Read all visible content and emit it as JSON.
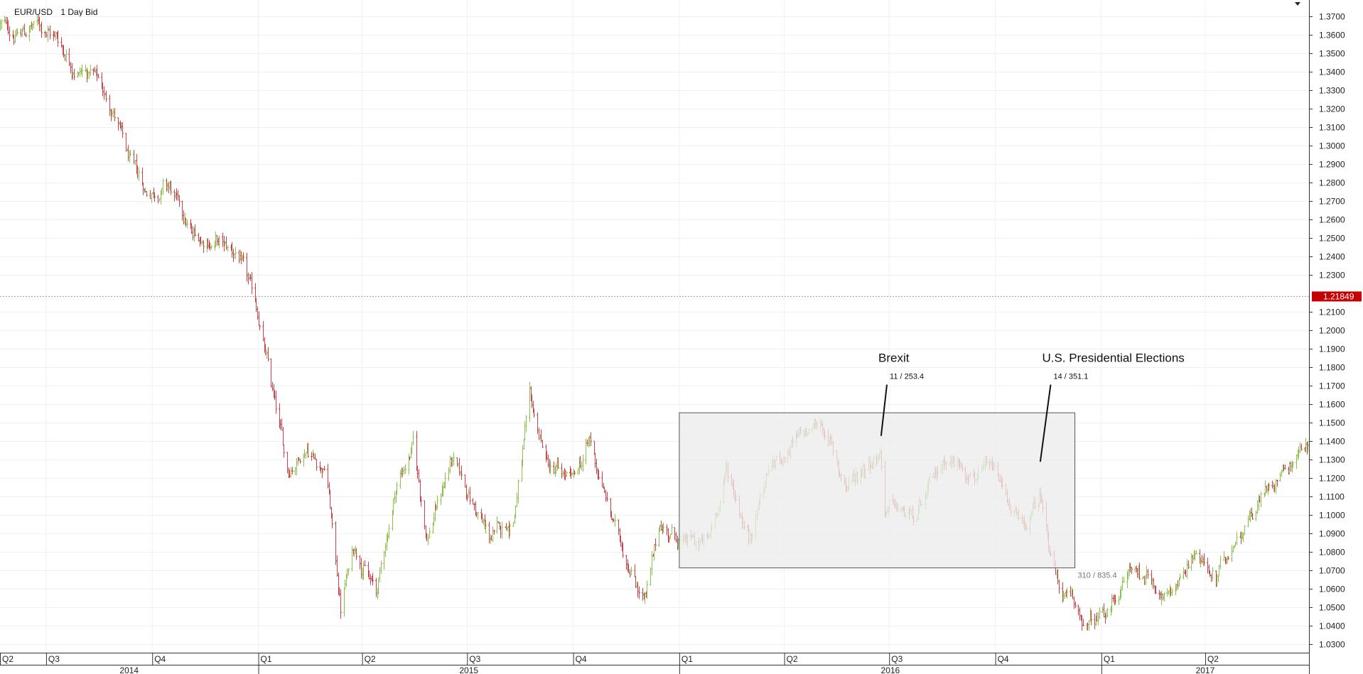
{
  "header": {
    "symbol": "EUR/USD",
    "interval": "1 Day Bid"
  },
  "current_price_label": "1.21849",
  "colors": {
    "up": "#8bc34a",
    "down": "#d0424a",
    "price_tag": "#c40000",
    "range_fill": "#ececec",
    "range_stroke": "#555555",
    "annotation": "#111111"
  },
  "chart_data": {
    "type": "ohlc",
    "title": "EUR/USD 1 Day Bid",
    "y_axis": {
      "position": "right",
      "range": [
        1.025,
        1.3745
      ],
      "ticks": [
        "1.3700",
        "1.3600",
        "1.3500",
        "1.3400",
        "1.3300",
        "1.3200",
        "1.3100",
        "1.3000",
        "1.2900",
        "1.2800",
        "1.2700",
        "1.2600",
        "1.2500",
        "1.2400",
        "1.2300",
        "1.2100",
        "1.2000",
        "1.1900",
        "1.1800",
        "1.1700",
        "1.1600",
        "1.1500",
        "1.1400",
        "1.1300",
        "1.1200",
        "1.1100",
        "1.1000",
        "1.0900",
        "1.0800",
        "1.0700",
        "1.0600",
        "1.0500",
        "1.0400",
        "1.0300"
      ]
    },
    "x_axis": {
      "range": [
        "2014-05-22",
        "2017-06-30"
      ],
      "quarter_labels": [
        {
          "label": "Q2",
          "date": "2014-04-01"
        },
        {
          "label": "Q3",
          "date": "2014-07-01"
        },
        {
          "label": "Q4",
          "date": "2014-10-01"
        },
        {
          "label": "Q1",
          "date": "2015-01-01"
        },
        {
          "label": "Q2",
          "date": "2015-04-01"
        },
        {
          "label": "Q3",
          "date": "2015-07-01"
        },
        {
          "label": "Q4",
          "date": "2015-10-01"
        },
        {
          "label": "Q1",
          "date": "2016-01-01"
        },
        {
          "label": "Q2",
          "date": "2016-04-01"
        },
        {
          "label": "Q3",
          "date": "2016-07-01"
        },
        {
          "label": "Q4",
          "date": "2016-10-01"
        },
        {
          "label": "Q1",
          "date": "2017-01-01"
        },
        {
          "label": "Q2",
          "date": "2017-04-01"
        }
      ],
      "year_labels": [
        {
          "label": "2014",
          "date": "2014-01-01"
        },
        {
          "label": "2015",
          "date": "2015-01-01"
        },
        {
          "label": "2016",
          "date": "2016-01-01"
        },
        {
          "label": "2017",
          "date": "2017-01-01"
        }
      ]
    },
    "series_path": [
      [
        "2014-05-22",
        1.366
      ],
      [
        "2014-06-05",
        1.36
      ],
      [
        "2014-06-25",
        1.366
      ],
      [
        "2014-07-10",
        1.359
      ],
      [
        "2014-07-25",
        1.343
      ],
      [
        "2014-08-12",
        1.338
      ],
      [
        "2014-08-29",
        1.318
      ],
      [
        "2014-09-10",
        1.292
      ],
      [
        "2014-09-25",
        1.275
      ],
      [
        "2014-10-15",
        1.278
      ],
      [
        "2014-11-05",
        1.25
      ],
      [
        "2014-11-25",
        1.248
      ],
      [
        "2014-12-15",
        1.24
      ],
      [
        "2014-12-31",
        1.21
      ],
      [
        "2015-01-15",
        1.16
      ],
      [
        "2015-01-26",
        1.124
      ],
      [
        "2015-02-12",
        1.138
      ],
      [
        "2015-03-01",
        1.123
      ],
      [
        "2015-03-13",
        1.05
      ],
      [
        "2015-03-25",
        1.085
      ],
      [
        "2015-04-13",
        1.057
      ],
      [
        "2015-04-30",
        1.115
      ],
      [
        "2015-05-15",
        1.138
      ],
      [
        "2015-05-27",
        1.088
      ],
      [
        "2015-06-17",
        1.13
      ],
      [
        "2015-07-07",
        1.105
      ],
      [
        "2015-07-20",
        1.087
      ],
      [
        "2015-08-10",
        1.098
      ],
      [
        "2015-08-24",
        1.16
      ],
      [
        "2015-09-10",
        1.125
      ],
      [
        "2015-10-01",
        1.118
      ],
      [
        "2015-10-15",
        1.14
      ],
      [
        "2015-11-02",
        1.1
      ],
      [
        "2015-11-24",
        1.065
      ],
      [
        "2015-12-03",
        1.055
      ],
      [
        "2015-12-15",
        1.095
      ],
      [
        "2016-01-05",
        1.085
      ],
      [
        "2016-01-26",
        1.085
      ],
      [
        "2016-02-11",
        1.125
      ],
      [
        "2016-03-01",
        1.088
      ],
      [
        "2016-03-18",
        1.125
      ],
      [
        "2016-04-12",
        1.14
      ],
      [
        "2016-05-03",
        1.15
      ],
      [
        "2016-05-25",
        1.115
      ],
      [
        "2016-06-10",
        1.128
      ],
      [
        "2016-06-23",
        1.135
      ],
      [
        "2016-06-27",
        1.105
      ],
      [
        "2016-07-25",
        1.098
      ],
      [
        "2016-08-18",
        1.132
      ],
      [
        "2016-09-15",
        1.123
      ],
      [
        "2016-10-01",
        1.122
      ],
      [
        "2016-10-25",
        1.09
      ],
      [
        "2016-11-09",
        1.11
      ],
      [
        "2016-11-25",
        1.06
      ],
      [
        "2016-12-20",
        1.04
      ],
      [
        "2017-01-05",
        1.045
      ],
      [
        "2017-01-25",
        1.07
      ],
      [
        "2017-02-09",
        1.068
      ],
      [
        "2017-03-01",
        1.055
      ],
      [
        "2017-03-22",
        1.082
      ],
      [
        "2017-04-10",
        1.063
      ],
      [
        "2017-04-28",
        1.09
      ],
      [
        "2017-06-05",
        1.125
      ],
      [
        "2017-06-30",
        1.14
      ]
    ],
    "horizontal_line": {
      "value": 1.21849,
      "style": "dotted"
    },
    "range_box": {
      "from": "2016-01-01",
      "to": "2016-12-09",
      "high": 1.1555,
      "low": 1.0715,
      "label": "310 / 835.4"
    },
    "annotations": [
      {
        "title": "Brexit",
        "subtitle": "11 / 253.4",
        "date": "2016-06-24",
        "value": 1.143,
        "label_value": 1.1715,
        "label_date": "2016-06-29"
      },
      {
        "title": "U.S. Presidential Elections",
        "subtitle": "14 / 351.1",
        "date": "2016-11-09",
        "value": 1.129,
        "label_value": 1.1715,
        "label_date": "2016-11-18"
      }
    ]
  }
}
